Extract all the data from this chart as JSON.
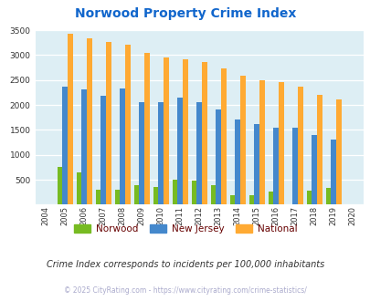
{
  "title": "Norwood Property Crime Index",
  "years": [
    2004,
    2005,
    2006,
    2007,
    2008,
    2009,
    2010,
    2011,
    2012,
    2013,
    2014,
    2015,
    2016,
    2017,
    2018,
    2019,
    2020
  ],
  "norwood": [
    0,
    760,
    650,
    300,
    300,
    400,
    360,
    510,
    490,
    400,
    190,
    185,
    260,
    0,
    280,
    330,
    0
  ],
  "new_jersey": [
    0,
    2360,
    2310,
    2190,
    2330,
    2060,
    2060,
    2155,
    2050,
    1900,
    1710,
    1610,
    1550,
    1550,
    1400,
    1310,
    0
  ],
  "national": [
    0,
    3420,
    3340,
    3260,
    3210,
    3040,
    2960,
    2910,
    2860,
    2730,
    2590,
    2490,
    2460,
    2370,
    2200,
    2110,
    0
  ],
  "norwood_color": "#77bb22",
  "nj_color": "#4488cc",
  "national_color": "#ffaa33",
  "plot_bg": "#ddeef4",
  "ylim": [
    0,
    3500
  ],
  "yticks": [
    0,
    500,
    1000,
    1500,
    2000,
    2500,
    3000,
    3500
  ],
  "subtitle": "Crime Index corresponds to incidents per 100,000 inhabitants",
  "copyright": "© 2025 CityRating.com - https://www.cityrating.com/crime-statistics/",
  "legend_labels": [
    "Norwood",
    "New Jersey",
    "National"
  ],
  "title_color": "#1166cc",
  "label_color": "#660000",
  "subtitle_color": "#333333",
  "copyright_color": "#aaaacc"
}
